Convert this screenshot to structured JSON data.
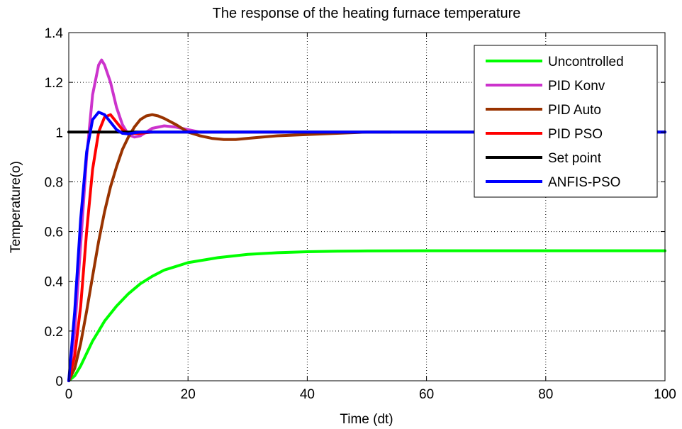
{
  "chart_data": {
    "type": "line",
    "title": "The response of the heating furnace temperature",
    "xlabel": "Time (dt)",
    "ylabel": "Temperature(o)",
    "xlim": [
      0,
      100
    ],
    "ylim": [
      0,
      1.4
    ],
    "x_ticks": [
      "0",
      "20",
      "40",
      "60",
      "80",
      "100"
    ],
    "y_ticks": [
      "0",
      "0.2",
      "0.4",
      "0.6",
      "0.8",
      "1",
      "1.2",
      "1.4"
    ],
    "grid": true,
    "legend_position": "top-right",
    "series": [
      {
        "name": "Uncontrolled",
        "color": "#00ff00",
        "x": [
          0,
          1,
          2,
          3,
          4,
          5,
          6,
          8,
          10,
          12,
          14,
          16,
          18,
          20,
          25,
          30,
          35,
          40,
          45,
          50,
          60,
          70,
          80,
          90,
          100
        ],
        "y": [
          0,
          0.02,
          0.06,
          0.11,
          0.16,
          0.2,
          0.24,
          0.3,
          0.35,
          0.39,
          0.42,
          0.445,
          0.46,
          0.475,
          0.495,
          0.508,
          0.515,
          0.519,
          0.521,
          0.522,
          0.523,
          0.523,
          0.523,
          0.523,
          0.523
        ]
      },
      {
        "name": "PID Konv",
        "color": "#cc33cc",
        "x": [
          0,
          1,
          2,
          3,
          4,
          5,
          5.5,
          6,
          7,
          8,
          9,
          10,
          11,
          12,
          13,
          14,
          16,
          18,
          20,
          22,
          25,
          30,
          36
        ],
        "y": [
          0,
          0.2,
          0.55,
          0.9,
          1.15,
          1.27,
          1.29,
          1.27,
          1.2,
          1.1,
          1.03,
          0.99,
          0.98,
          0.985,
          1.0,
          1.015,
          1.025,
          1.02,
          1.01,
          1.0,
          1.0,
          1.0,
          1.0
        ]
      },
      {
        "name": "PID Auto",
        "color": "#993300",
        "x": [
          0,
          1,
          2,
          3,
          4,
          5,
          6,
          7,
          8,
          9,
          10,
          11,
          12,
          13,
          14,
          15,
          16,
          18,
          20,
          22,
          24,
          26,
          28,
          30,
          35,
          40,
          45,
          50,
          54
        ],
        "y": [
          0,
          0.05,
          0.15,
          0.28,
          0.42,
          0.56,
          0.68,
          0.78,
          0.86,
          0.93,
          0.98,
          1.02,
          1.05,
          1.065,
          1.07,
          1.065,
          1.055,
          1.03,
          1.0,
          0.985,
          0.975,
          0.97,
          0.97,
          0.975,
          0.985,
          0.99,
          0.995,
          1.0,
          1.0
        ]
      },
      {
        "name": "PID PSO",
        "color": "#ff0000",
        "x": [
          0,
          1,
          2,
          3,
          4,
          5,
          6,
          7,
          8,
          9,
          10,
          12,
          14
        ],
        "y": [
          0,
          0.1,
          0.3,
          0.6,
          0.85,
          1.0,
          1.06,
          1.07,
          1.04,
          1.01,
          0.995,
          0.995,
          1.0
        ]
      },
      {
        "name": "Set point",
        "color": "#000000",
        "x": [
          0,
          100
        ],
        "y": [
          1,
          1
        ]
      },
      {
        "name": "ANFIS-PSO",
        "color": "#0000ff",
        "x": [
          0,
          1,
          2,
          3,
          4,
          5,
          6,
          7,
          8,
          9,
          10,
          11,
          12,
          20,
          40,
          60,
          80,
          100
        ],
        "y": [
          0,
          0.28,
          0.65,
          0.92,
          1.05,
          1.08,
          1.07,
          1.04,
          1.01,
          0.995,
          0.993,
          0.997,
          1.0,
          1.0,
          1.0,
          1.0,
          1.0,
          1.0
        ]
      }
    ]
  }
}
